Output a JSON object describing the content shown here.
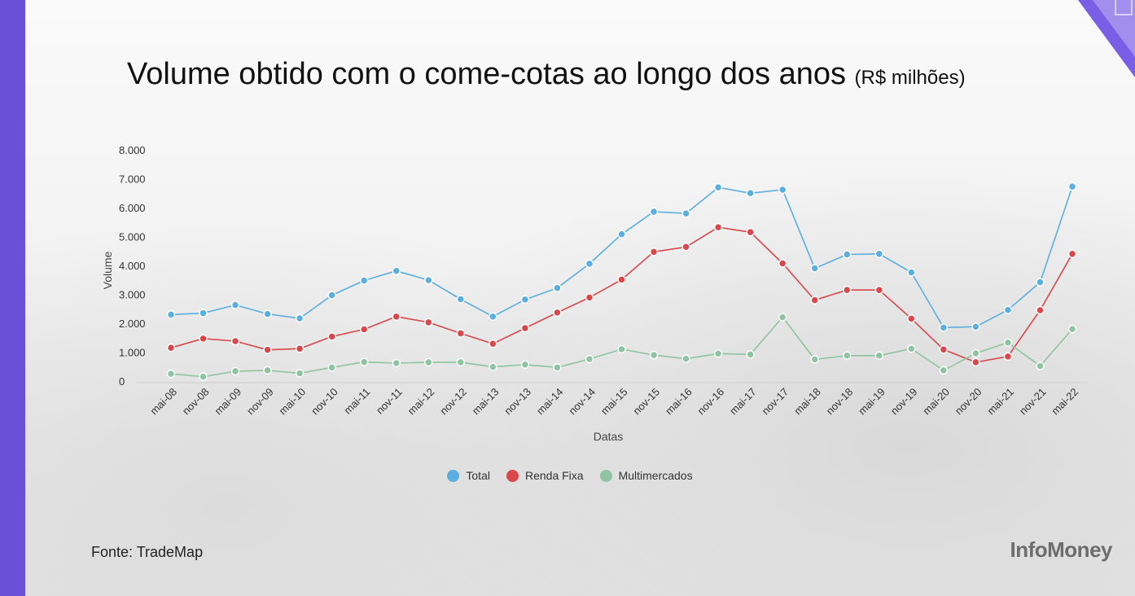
{
  "title": {
    "main": "Volume obtido com o come-cotas ao longo dos anos",
    "unit": "(R$ milhões)"
  },
  "source": "Fonte: TradeMap",
  "logo": "InfoMoney",
  "colors": {
    "Total": "#5aaee0",
    "Renda Fixa": "#d9474b",
    "Multimercados": "#8ec4a2",
    "accent_bar": "#6a4fd8"
  },
  "chart_data": {
    "type": "line",
    "xlabel": "Datas",
    "ylabel": "Volume",
    "ylim": [
      0,
      8000
    ],
    "yticks": [
      {
        "value": 0,
        "label": "0"
      },
      {
        "value": 1000,
        "label": "1.000"
      },
      {
        "value": 2000,
        "label": "2.000"
      },
      {
        "value": 3000,
        "label": "3.000"
      },
      {
        "value": 4000,
        "label": "4.000"
      },
      {
        "value": 5000,
        "label": "5.000"
      },
      {
        "value": 6000,
        "label": "6.000"
      },
      {
        "value": 7000,
        "label": "7.000"
      },
      {
        "value": 8000,
        "label": "8.000"
      }
    ],
    "grid": false,
    "legend_position": "bottom",
    "categories": [
      "mai-08",
      "nov-08",
      "mai-09",
      "nov-09",
      "mai-10",
      "nov-10",
      "mai-11",
      "nov-11",
      "mai-12",
      "nov-12",
      "mai-13",
      "nov-13",
      "mai-14",
      "nov-14",
      "mai-15",
      "nov-15",
      "mai-16",
      "nov-16",
      "mai-17",
      "nov-17",
      "mai-18",
      "nov-18",
      "mai-19",
      "nov-19",
      "mai-20",
      "nov-20",
      "mai-21",
      "nov-21",
      "mai-22"
    ],
    "series": [
      {
        "name": "Total",
        "values": [
          2300,
          2350,
          2630,
          2320,
          2170,
          2970,
          3480,
          3810,
          3490,
          2830,
          2230,
          2820,
          3220,
          4060,
          5080,
          5860,
          5800,
          6700,
          6500,
          6620,
          3900,
          4380,
          4400,
          3760,
          1850,
          1880,
          2460,
          3420,
          6730
        ]
      },
      {
        "name": "Renda Fixa",
        "values": [
          1150,
          1470,
          1380,
          1080,
          1120,
          1540,
          1790,
          2230,
          2030,
          1650,
          1290,
          1830,
          2370,
          2890,
          3510,
          4470,
          4640,
          5320,
          5150,
          4070,
          2800,
          3150,
          3150,
          2160,
          1090,
          650,
          850,
          2450,
          4400
        ]
      },
      {
        "name": "Multimercados",
        "values": [
          250,
          150,
          340,
          370,
          270,
          470,
          660,
          620,
          650,
          650,
          490,
          570,
          470,
          760,
          1100,
          900,
          770,
          950,
          920,
          2210,
          750,
          880,
          880,
          1120,
          370,
          960,
          1330,
          520,
          1800
        ]
      }
    ]
  }
}
